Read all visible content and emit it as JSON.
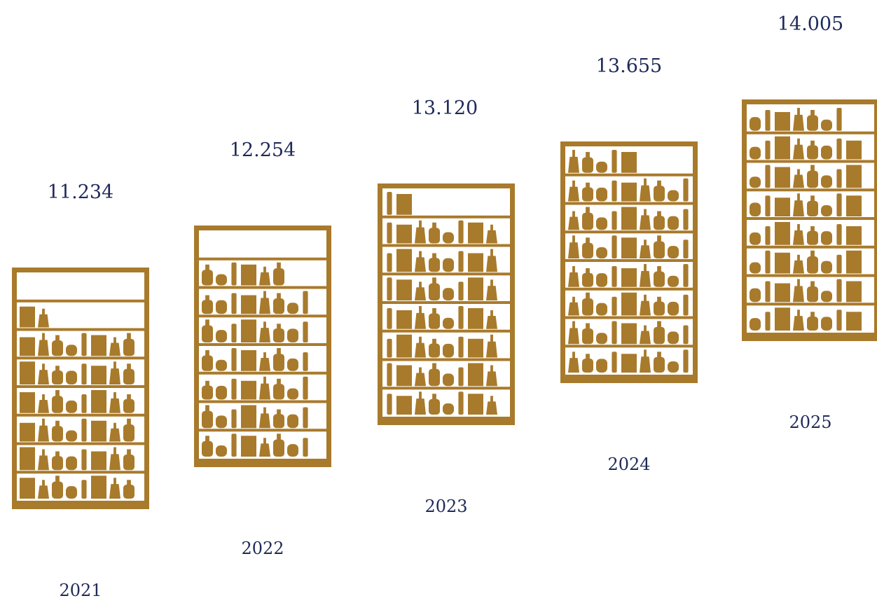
{
  "chart_data": {
    "type": "bar",
    "categories": [
      "2021",
      "2022",
      "2023",
      "2024",
      "2025"
    ],
    "values": [
      11.234,
      12.254,
      13.12,
      13.655,
      14.005
    ],
    "value_labels": [
      "11.234",
      "12.254",
      "13.120",
      "13.655",
      "14.005"
    ],
    "title": "",
    "xlabel": "",
    "ylabel": "",
    "colors": {
      "shelf": "#a87a2c",
      "text": "#1f2a5a",
      "background": "#ffffff"
    },
    "icon": "shelf-of-bottles-icon"
  }
}
